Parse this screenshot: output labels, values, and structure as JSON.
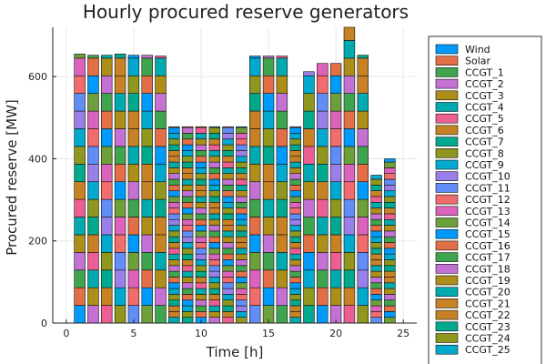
{
  "chart_data": {
    "type": "bar",
    "title": "Hourly procured reserve generators",
    "xlabel": "Time [h]",
    "ylabel": "Procured reserve [MW]",
    "xlim": [
      -1,
      26
    ],
    "ylim": [
      0,
      720
    ],
    "xticks": [
      0,
      5,
      10,
      15,
      20,
      25
    ],
    "yticks": [
      0,
      200,
      400,
      600
    ],
    "grid": true,
    "legend_position": "right",
    "hours": [
      1,
      2,
      3,
      4,
      5,
      6,
      7,
      8,
      9,
      10,
      11,
      12,
      13,
      14,
      15,
      16,
      17,
      18,
      19,
      20,
      21,
      22,
      23,
      24
    ],
    "totals": [
      655,
      652,
      652,
      655,
      652,
      652,
      650,
      478,
      478,
      478,
      478,
      478,
      478,
      650,
      650,
      650,
      478,
      612,
      632,
      632,
      720,
      652,
      360,
      400
    ],
    "series": [
      {
        "name": "Wind",
        "color": "#009AFA"
      },
      {
        "name": "Solar",
        "color": "#E36F47"
      },
      {
        "name": "CCGT_1",
        "color": "#3EA44E"
      },
      {
        "name": "CCGT_2",
        "color": "#C371D2"
      },
      {
        "name": "CCGT_3",
        "color": "#AC8E18"
      },
      {
        "name": "CCGT_4",
        "color": "#00AAAE"
      },
      {
        "name": "CCGT_5",
        "color": "#ED5E93"
      },
      {
        "name": "CCGT_6",
        "color": "#C68225"
      },
      {
        "name": "CCGT_7",
        "color": "#00A98D"
      },
      {
        "name": "CCGT_8",
        "color": "#8F971E"
      },
      {
        "name": "CCGT_9",
        "color": "#00A9CD"
      },
      {
        "name": "CCGT_10",
        "color": "#9B7FE9"
      },
      {
        "name": "CCGT_11",
        "color": "#618DF6"
      },
      {
        "name": "CCGT_12",
        "color": "#F16C6C"
      },
      {
        "name": "CCGT_13",
        "color": "#DC63BB"
      },
      {
        "name": "CCGT_14",
        "color": "#6D9F3B"
      },
      {
        "name": "CCGT_15",
        "color": "#009AFA"
      },
      {
        "name": "CCGT_16",
        "color": "#E36F47"
      },
      {
        "name": "CCGT_17",
        "color": "#3EA44E"
      },
      {
        "name": "CCGT_18",
        "color": "#C371D2"
      },
      {
        "name": "CCGT_19",
        "color": "#AC8E18"
      },
      {
        "name": "CCGT_20",
        "color": "#00AAAE"
      },
      {
        "name": "CCGT_21",
        "color": "#C68225"
      },
      {
        "name": "CCGT_22",
        "color": "#C68225"
      },
      {
        "name": "CCGT_23",
        "color": "#00A98D"
      },
      {
        "name": "CCGT_24",
        "color": "#8F971E"
      },
      {
        "name": "CCGT_25",
        "color": "#00A9CD"
      }
    ]
  }
}
